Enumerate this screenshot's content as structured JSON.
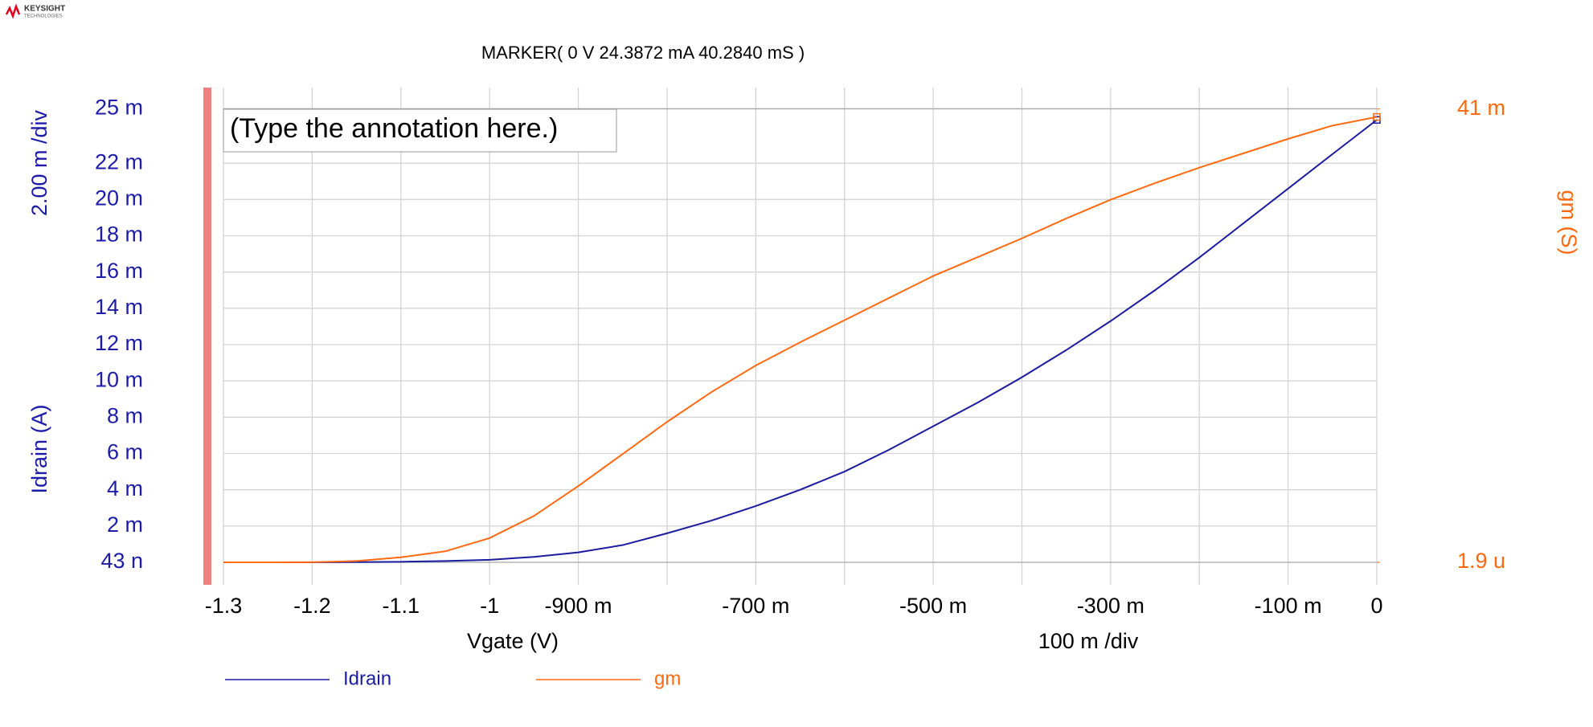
{
  "logo": {
    "name": "KEYSIGHT",
    "sub": "TECHNOLOGIES"
  },
  "chart_data": {
    "type": "line",
    "title": "MARKER(  0 V   24.3872 mA  40.2840 mS )",
    "annotation": "(Type the annotation here.)",
    "ylabel": "Idrain (A)",
    "ydiv": "2.00 m /div",
    "y2label": "gm (S)",
    "xlabel": "Vgate (V)",
    "xdiv": "100 m /div",
    "x": [
      -1.3,
      -1.25,
      -1.2,
      -1.15,
      -1.1,
      -1.05,
      -1.0,
      -0.95,
      -0.9,
      -0.85,
      -0.8,
      -0.75,
      -0.7,
      -0.65,
      -0.6,
      -0.55,
      -0.5,
      -0.45,
      -0.4,
      -0.35,
      -0.3,
      -0.25,
      -0.2,
      -0.15,
      -0.1,
      -0.05,
      0
    ],
    "series": [
      {
        "name": "Idrain",
        "color": "#1c1ca0",
        "axis": "y",
        "values": [
          4.3e-08,
          5e-08,
          1e-06,
          1e-05,
          3e-05,
          7e-05,
          0.00014,
          0.0003,
          0.00055,
          0.00095,
          0.0016,
          0.0023,
          0.0031,
          0.004,
          0.005,
          0.0062,
          0.0075,
          0.0088,
          0.0102,
          0.0117,
          0.0133,
          0.015,
          0.0168,
          0.0187,
          0.0206,
          0.0225,
          0.0243872
        ]
      },
      {
        "name": "gm",
        "color": "#ff6a10",
        "axis": "y2",
        "values": [
          1.9e-06,
          3e-06,
          1e-05,
          0.00012,
          0.00046,
          0.001,
          0.0022,
          0.0042,
          0.0069,
          0.0098,
          0.0127,
          0.0154,
          0.0178,
          0.0199,
          0.0219,
          0.0239,
          0.0259,
          0.0276,
          0.0293,
          0.0311,
          0.0328,
          0.0343,
          0.0357,
          0.037,
          0.0383,
          0.0395,
          0.040284
        ]
      }
    ],
    "xlim": [
      -1.3,
      0
    ],
    "xticks": [
      -1.3,
      -1.2,
      -1.1,
      -1,
      {
        "value": -0.9,
        "label": "-900 m"
      },
      {
        "value": -0.7,
        "label": "-700 m"
      },
      {
        "value": -0.5,
        "label": "-500 m"
      },
      {
        "value": -0.3,
        "label": "-300 m"
      },
      {
        "value": -0.1,
        "label": "-100 m"
      },
      0
    ],
    "xgrid_minor": [
      -0.8,
      -0.6,
      -0.4,
      -0.2
    ],
    "ylim": [
      -0.00124,
      0.02617
    ],
    "yticks": [
      {
        "value": 4.3e-08,
        "label": "43 n"
      },
      {
        "value": 0.002,
        "label": "2 m"
      },
      {
        "value": 0.004,
        "label": "4 m"
      },
      {
        "value": 0.006,
        "label": "6 m"
      },
      {
        "value": 0.008,
        "label": "8 m"
      },
      {
        "value": 0.01,
        "label": "10 m"
      },
      {
        "value": 0.012,
        "label": "12 m"
      },
      {
        "value": 0.014,
        "label": "14 m"
      },
      {
        "value": 0.016,
        "label": "16 m"
      },
      {
        "value": 0.018,
        "label": "18 m"
      },
      {
        "value": 0.02,
        "label": "20 m"
      },
      {
        "value": 0.022,
        "label": "22 m"
      },
      {
        "value": 0.025,
        "label": "25 m"
      }
    ],
    "y2lim": [
      -0.00203,
      0.04294
    ],
    "y2ticks": [
      {
        "value": 1.9e-06,
        "label": "1.9 u"
      },
      {
        "value": 0.041,
        "label": "41 m"
      }
    ],
    "grid": true
  }
}
